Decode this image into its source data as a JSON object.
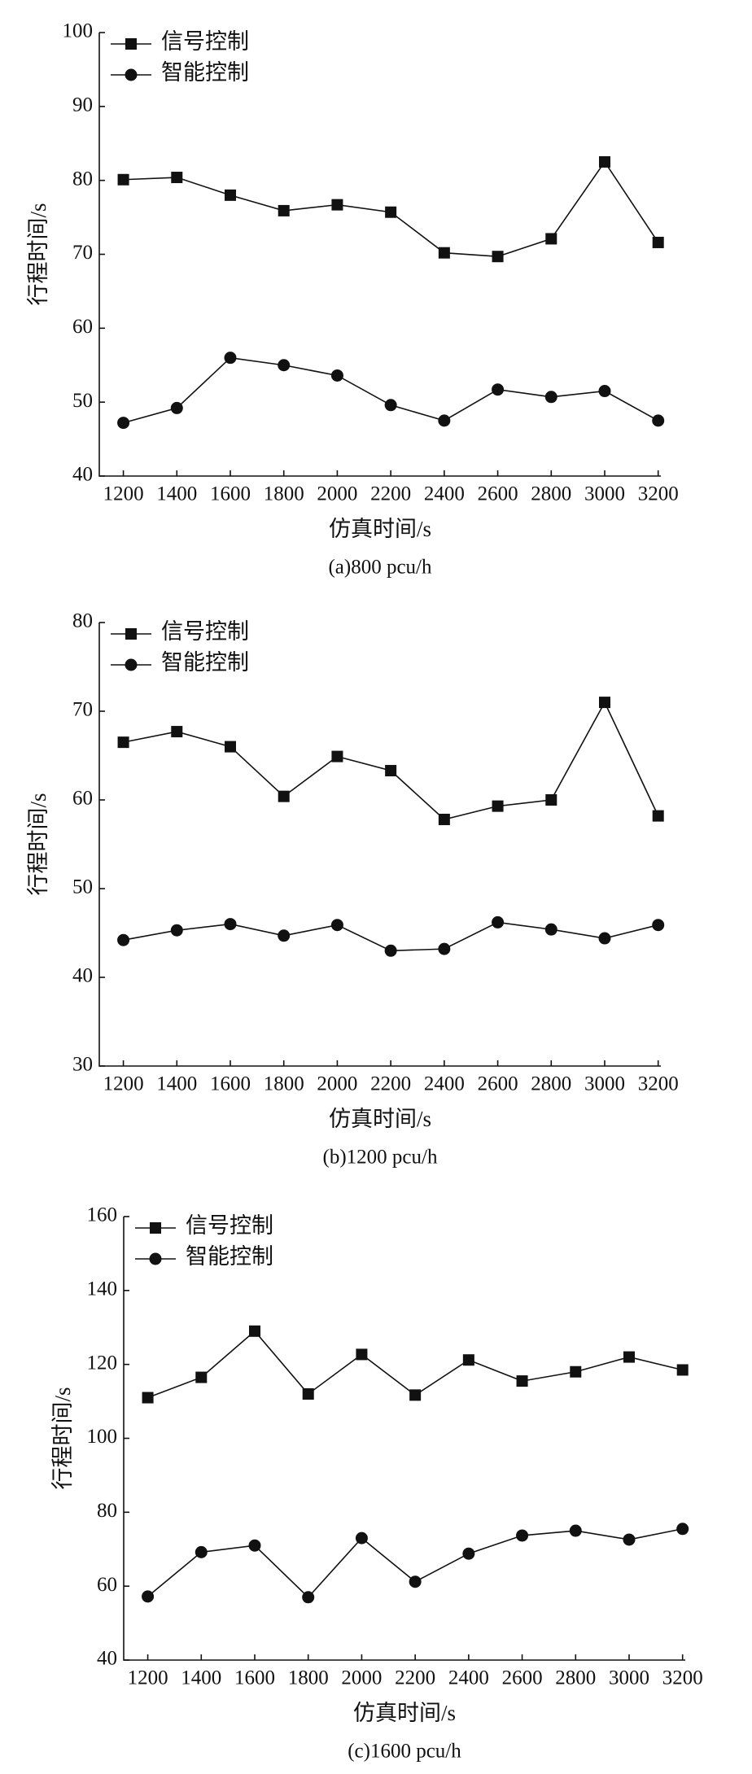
{
  "chart_data": [
    {
      "type": "line",
      "caption": "(a)800 pcu/h",
      "x_label": "仿真时间/s",
      "y_label": "行程时间/s",
      "x": [
        1200,
        1400,
        1600,
        1800,
        2000,
        2200,
        2400,
        2600,
        2800,
        3000,
        3200
      ],
      "xlim": [
        1110,
        3210
      ],
      "xticks": [
        1200,
        1400,
        1600,
        1800,
        2000,
        2200,
        2400,
        2600,
        2800,
        3000,
        3200
      ],
      "ylim": [
        40,
        100
      ],
      "yticks": [
        40,
        50,
        60,
        70,
        80,
        90,
        100
      ],
      "legend": "upper left",
      "series": [
        {
          "name": "信号控制",
          "color": "#111111",
          "marker": "square",
          "values": [
            80.1,
            80.4,
            78.0,
            75.9,
            76.7,
            75.7,
            70.2,
            69.7,
            72.1,
            82.5,
            71.6
          ]
        },
        {
          "name": "智能控制",
          "color": "#111111",
          "marker": "circle",
          "values": [
            47.2,
            49.2,
            56.0,
            55.0,
            53.6,
            49.6,
            47.5,
            51.7,
            50.7,
            51.5,
            47.5
          ]
        }
      ]
    },
    {
      "type": "line",
      "caption": "(b)1200 pcu/h",
      "x_label": "仿真时间/s",
      "y_label": "行程时间/s",
      "x": [
        1200,
        1400,
        1600,
        1800,
        2000,
        2200,
        2400,
        2600,
        2800,
        3000,
        3200
      ],
      "xlim": [
        1110,
        3210
      ],
      "xticks": [
        1200,
        1400,
        1600,
        1800,
        2000,
        2200,
        2400,
        2600,
        2800,
        3000,
        3200
      ],
      "ylim": [
        30,
        80
      ],
      "yticks": [
        30,
        40,
        50,
        60,
        70,
        80
      ],
      "legend": "upper left",
      "series": [
        {
          "name": "信号控制",
          "color": "#111111",
          "marker": "square",
          "values": [
            66.5,
            67.7,
            66.0,
            60.4,
            64.9,
            63.3,
            57.8,
            59.3,
            60.0,
            71.0,
            58.2
          ]
        },
        {
          "name": "智能控制",
          "color": "#111111",
          "marker": "circle",
          "values": [
            44.2,
            45.3,
            46.0,
            44.7,
            45.9,
            43.0,
            43.2,
            46.2,
            45.4,
            44.4,
            45.9
          ]
        }
      ]
    },
    {
      "type": "line",
      "caption": "(c)1600 pcu/h",
      "x_label": "仿真时间/s",
      "y_label": "行程时间/s",
      "x": [
        1200,
        1400,
        1600,
        1800,
        2000,
        2200,
        2400,
        2600,
        2800,
        3000,
        3200
      ],
      "xlim": [
        1110,
        3210
      ],
      "xticks": [
        1200,
        1400,
        1600,
        1800,
        2000,
        2200,
        2400,
        2600,
        2800,
        3000,
        3200
      ],
      "ylim": [
        40,
        160
      ],
      "yticks": [
        40,
        60,
        80,
        100,
        120,
        140,
        160
      ],
      "legend": "upper left",
      "series": [
        {
          "name": "信号控制",
          "color": "#111111",
          "marker": "square",
          "values": [
            111,
            116.5,
            129,
            112,
            122.7,
            111.7,
            121.2,
            115.5,
            118,
            122,
            118.5
          ]
        },
        {
          "name": "智能控制",
          "color": "#111111",
          "marker": "circle",
          "values": [
            57.2,
            69.2,
            71,
            57,
            73,
            61.2,
            68.8,
            73.7,
            75,
            72.6,
            75.5
          ]
        }
      ]
    }
  ]
}
